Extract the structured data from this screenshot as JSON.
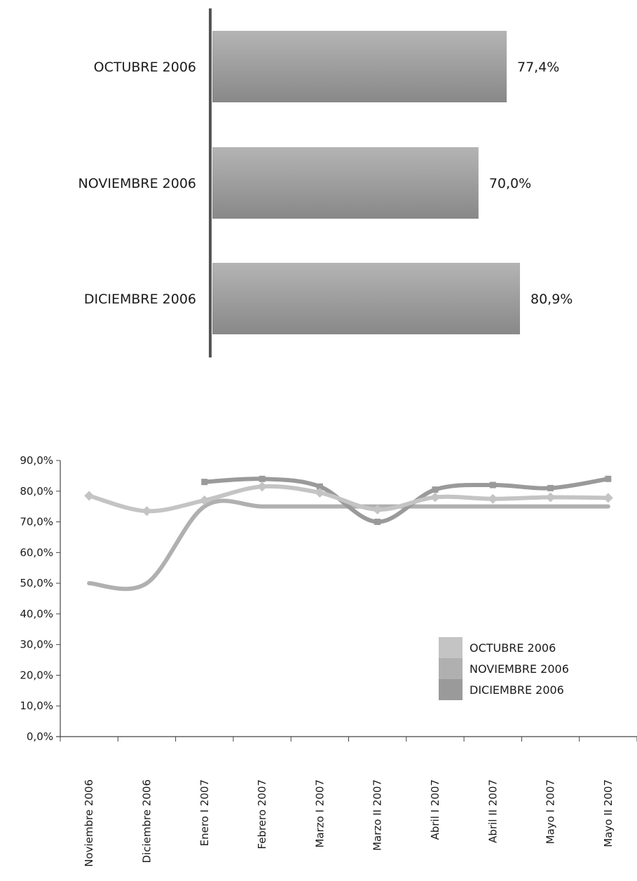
{
  "chart_data": [
    {
      "type": "bar",
      "orientation": "horizontal",
      "categories": [
        "OCTUBRE 2006",
        "NOVIEMBRE 2006",
        "DICIEMBRE 2006"
      ],
      "values": [
        77.4,
        70.0,
        80.9
      ],
      "value_labels": [
        "77,4%",
        "70,0%",
        "80,9%"
      ],
      "colors": {
        "bar_top": "#b4b4b4",
        "bar_bottom": "#888888",
        "axis": "#555555"
      }
    },
    {
      "type": "line",
      "categories": [
        "Noviembre 2006",
        "Diciembre 2006",
        "Enero I 2007",
        "Febrero 2007",
        "Marzo I 2007",
        "Marzo II 2007",
        "Abril I 2007",
        "Abril II 2007",
        "Mayo I 2007",
        "Mayo II 2007"
      ],
      "series": [
        {
          "name": "OCTUBRE 2006",
          "marker": "diamond",
          "color": "#c4c4c4",
          "values": [
            78.5,
            73.5,
            77.0,
            81.5,
            79.5,
            74.0,
            78.0,
            77.5,
            78.0,
            77.8
          ]
        },
        {
          "name": "NOVIEMBRE 2006",
          "marker": "none",
          "color": "#b0b0b0",
          "values": [
            50.0,
            50.0,
            75.0,
            75.0,
            75.0,
            75.0,
            75.0,
            75.0,
            75.0,
            75.0
          ]
        },
        {
          "name": "DICIEMBRE 2006",
          "marker": "square",
          "color": "#9a9a9a",
          "values": [
            null,
            null,
            83.0,
            84.0,
            81.5,
            70.0,
            80.5,
            82.0,
            81.0,
            84.0
          ]
        }
      ],
      "y_ticks": [
        "0,0%",
        "10,0%",
        "20,0%",
        "30,0%",
        "40,0%",
        "50,0%",
        "60,0%",
        "70,0%",
        "80,0%",
        "90,0%"
      ],
      "ylim": [
        0,
        90
      ],
      "grid": false,
      "legend": "lower-right"
    }
  ]
}
